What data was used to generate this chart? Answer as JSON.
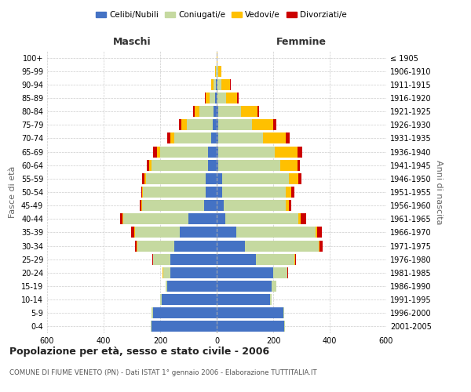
{
  "age_groups": [
    "0-4",
    "5-9",
    "10-14",
    "15-19",
    "20-24",
    "25-29",
    "30-34",
    "35-39",
    "40-44",
    "45-49",
    "50-54",
    "55-59",
    "60-64",
    "65-69",
    "70-74",
    "75-79",
    "80-84",
    "85-89",
    "90-94",
    "95-99",
    "100+"
  ],
  "birth_years": [
    "2001-2005",
    "1996-2000",
    "1991-1995",
    "1986-1990",
    "1981-1985",
    "1976-1980",
    "1971-1975",
    "1966-1970",
    "1961-1965",
    "1956-1960",
    "1951-1955",
    "1946-1950",
    "1941-1945",
    "1936-1940",
    "1931-1935",
    "1926-1930",
    "1921-1925",
    "1916-1920",
    "1911-1915",
    "1906-1910",
    "≤ 1905"
  ],
  "males": {
    "celibinubili": [
      230,
      225,
      195,
      175,
      165,
      165,
      150,
      130,
      100,
      45,
      40,
      40,
      30,
      30,
      20,
      15,
      10,
      5,
      2,
      1,
      0
    ],
    "coniugatipe": [
      3,
      5,
      5,
      5,
      25,
      60,
      130,
      160,
      230,
      220,
      220,
      210,
      200,
      170,
      130,
      90,
      50,
      20,
      10,
      2,
      0
    ],
    "vedovipe": [
      0,
      0,
      0,
      0,
      1,
      1,
      3,
      3,
      2,
      2,
      3,
      5,
      8,
      12,
      15,
      20,
      18,
      15,
      8,
      2,
      0
    ],
    "divorziatipe": [
      0,
      0,
      0,
      0,
      1,
      2,
      5,
      10,
      10,
      5,
      5,
      8,
      8,
      12,
      10,
      8,
      5,
      2,
      0,
      0,
      0
    ]
  },
  "females": {
    "celibinubili": [
      240,
      235,
      190,
      195,
      200,
      140,
      100,
      70,
      30,
      25,
      20,
      20,
      5,
      5,
      5,
      5,
      5,
      3,
      2,
      1,
      0
    ],
    "coniugatipe": [
      2,
      3,
      5,
      15,
      50,
      135,
      260,
      280,
      260,
      220,
      225,
      235,
      220,
      200,
      160,
      120,
      80,
      30,
      15,
      5,
      1
    ],
    "vedovipe": [
      0,
      0,
      0,
      0,
      1,
      2,
      5,
      5,
      8,
      10,
      20,
      35,
      60,
      80,
      80,
      75,
      60,
      40,
      30,
      10,
      2
    ],
    "divorziatipe": [
      0,
      0,
      0,
      0,
      1,
      3,
      10,
      18,
      20,
      8,
      10,
      10,
      10,
      18,
      12,
      10,
      5,
      5,
      2,
      0,
      0
    ]
  },
  "colors": {
    "celibinubili": "#4472c4",
    "coniugatipe": "#c5d9a0",
    "vedovipe": "#ffc000",
    "divorziatipe": "#cc0000"
  },
  "xlim": 600,
  "title": "Popolazione per età, sesso e stato civile - 2006",
  "subtitle": "COMUNE DI FIUME VENETO (PN) - Dati ISTAT 1° gennaio 2006 - Elaborazione TUTTITALIA.IT",
  "ylabel_left": "Fasce di età",
  "ylabel_right": "Anni di nascita",
  "xlabel_left": "Maschi",
  "xlabel_right": "Femmine",
  "legend_labels": [
    "Celibi/Nubili",
    "Coniugati/e",
    "Vedovi/e",
    "Divorziati/e"
  ],
  "bg_color": "#ffffff",
  "grid_color": "#cccccc"
}
